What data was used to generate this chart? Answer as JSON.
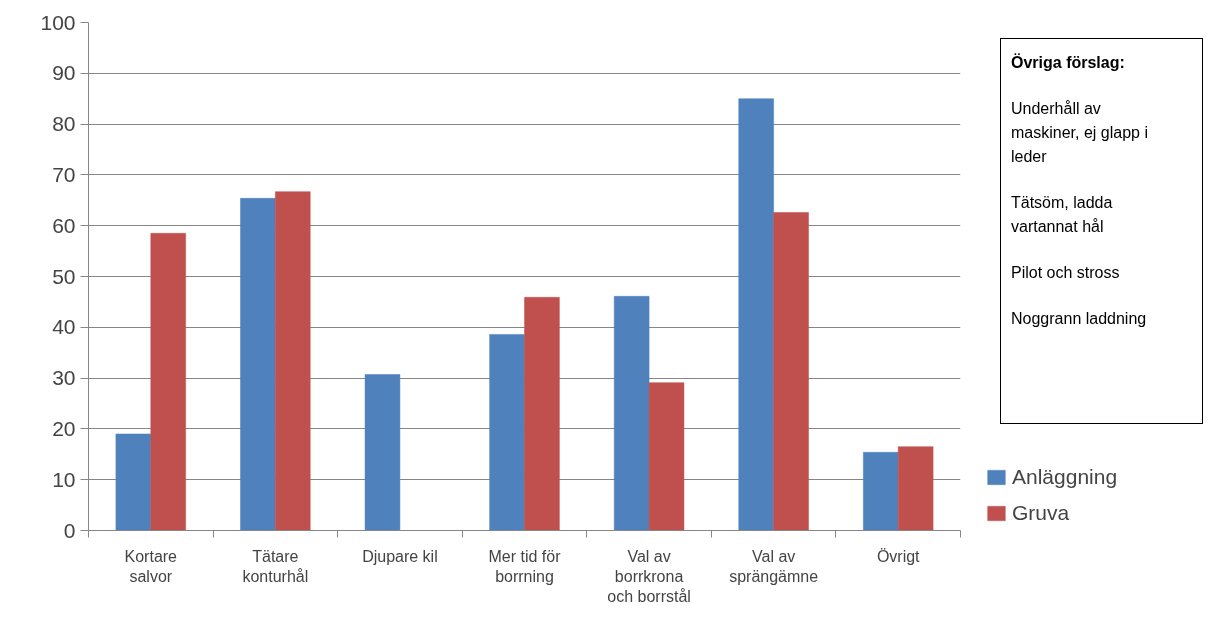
{
  "chart_data": {
    "type": "bar",
    "categories": [
      "Kortare\nsalvor",
      "Tätare\nkonturhål",
      "Djupare kil",
      "Mer tid för\nborrning",
      "Val av\nborrkrona\noch borrstål",
      "Val av\nsprängämne",
      "Övrigt"
    ],
    "series": [
      {
        "name": "Anläggning",
        "color": "#4f81bd",
        "values": [
          19,
          65.4,
          30.7,
          38.6,
          46.1,
          85,
          15.4
        ]
      },
      {
        "name": "Gruva",
        "color": "#c0504d",
        "values": [
          58.5,
          66.7,
          0,
          45.9,
          29.1,
          62.6,
          16.5
        ]
      }
    ],
    "ylim": [
      0,
      100
    ],
    "yticks": [
      0,
      10,
      20,
      30,
      40,
      50,
      60,
      70,
      80,
      90,
      100
    ],
    "grid": "y",
    "legend": "right",
    "annotations": [
      "Övriga förslag:",
      "Underhåll av\nmaskiner, ej glapp i\nleder",
      "Tätsöm, ladda\nvartannat hål",
      "Pilot och stross",
      "Noggrann laddning"
    ]
  }
}
